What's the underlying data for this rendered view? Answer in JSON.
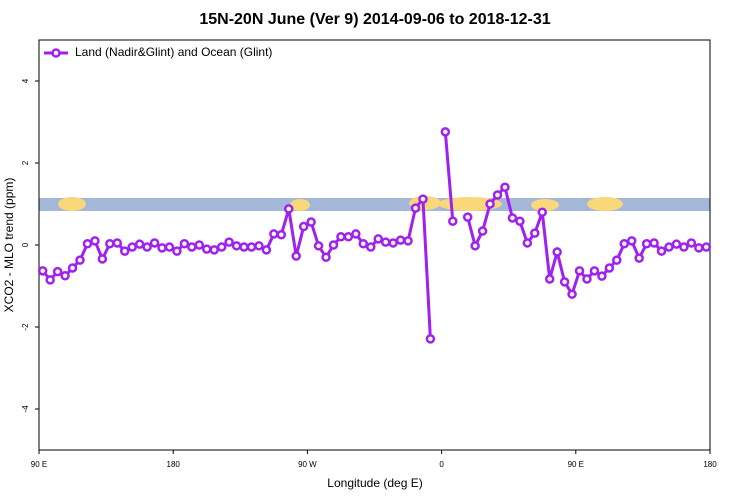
{
  "chart_data": {
    "type": "line",
    "title": "15N-20N June (Ver 9)   2014-09-06 to 2018-12-31",
    "xlabel": "Longitude (deg E)",
    "ylabel": "XCO2 - MLO trend (ppm)",
    "x": [
      92.5,
      97.5,
      102.5,
      107.5,
      112.5,
      117.5,
      122.5,
      127.5,
      132.5,
      137.5,
      142.5,
      147.5,
      152.5,
      157.5,
      162.5,
      167.5,
      172.5,
      177.5,
      182.5,
      187.5,
      192.5,
      197.5,
      202.5,
      207.5,
      212.5,
      217.5,
      222.5,
      227.5,
      232.5,
      237.5,
      242.5,
      247.5,
      252.5,
      257.5,
      262.5,
      267.5,
      272.5,
      277.5,
      282.5,
      287.5,
      292.5,
      297.5,
      302.5,
      307.5,
      312.5,
      317.5,
      322.5,
      327.5,
      332.5,
      337.5,
      342.5,
      347.5,
      352.5,
      357.5,
      362.5,
      367.5,
      372.5,
      377.5,
      382.5,
      387.5,
      392.5,
      397.5,
      402.5,
      407.5,
      412.5,
      417.5,
      422.5,
      427.5,
      432.5,
      437.5,
      442.5,
      447.5,
      452.5,
      457.5,
      462.5,
      467.5,
      472.5,
      477.5,
      482.5,
      487.5,
      492.5,
      497.5,
      502.5,
      507.5,
      512.5,
      517.5,
      522.5,
      527.5,
      532.5,
      537.5
    ],
    "series": [
      {
        "name": "Land (Nadir&Glint) and Ocean (Glint)",
        "color": "#a020f0",
        "values": [
          -0.63,
          -0.85,
          -0.65,
          -0.75,
          -0.56,
          -0.37,
          0.03,
          0.1,
          -0.34,
          0.03,
          0.05,
          -0.15,
          -0.05,
          0.02,
          -0.05,
          0.05,
          -0.07,
          -0.05,
          -0.15,
          0.03,
          -0.05,
          0,
          -0.1,
          -0.12,
          -0.05,
          0.07,
          -0.02,
          -0.05,
          -0.05,
          -0.02,
          -0.12,
          0.27,
          0.25,
          0.88,
          -0.27,
          0.45,
          0.56,
          -0.02,
          -0.3,
          0,
          0.2,
          0.2,
          0.27,
          0.03,
          -0.05,
          0.15,
          0.07,
          0.05,
          0.12,
          0.1,
          0.9,
          1.12,
          -2.29,
          null,
          2.76,
          0.58,
          null,
          0.68,
          -0.02,
          0.34,
          1.0,
          1.22,
          1.41,
          0.66,
          0.58,
          0.05,
          0.29,
          0.8,
          -0.83,
          -0.17,
          -0.9,
          -1.2,
          -0.63,
          -0.83,
          -0.63,
          -0.76,
          -0.56,
          -0.37,
          0.03,
          0.1,
          -0.32,
          0.03,
          0.05,
          -0.15,
          -0.05,
          0.02,
          -0.05,
          0.05,
          -0.07,
          -0.05
        ]
      }
    ],
    "xlim": [
      90,
      540
    ],
    "xticks": [
      {
        "value": 90,
        "label": "90 E"
      },
      180,
      {
        "value": 270,
        "label": "90 W"
      },
      {
        "value": 360,
        "label": "0"
      },
      {
        "value": 450,
        "label": "90 E"
      },
      {
        "value": 540,
        "label": "180"
      }
    ],
    "ylim": [
      -5,
      5
    ],
    "yticks": [
      -4,
      -2,
      0,
      2,
      4
    ],
    "legend": "top-left"
  }
}
